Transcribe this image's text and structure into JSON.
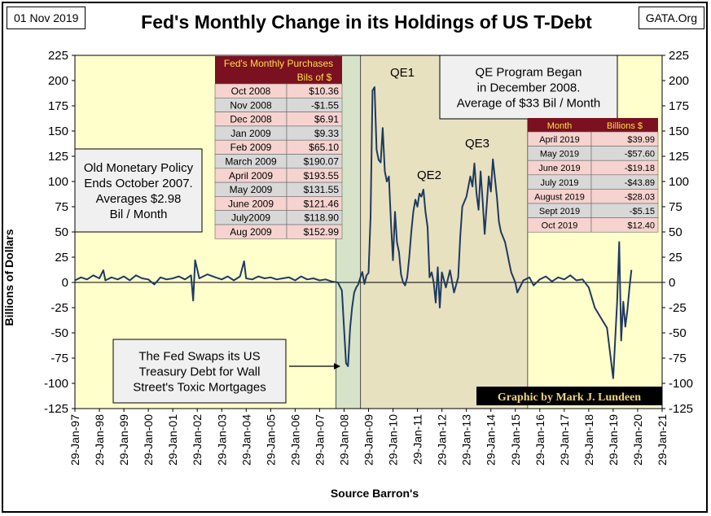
{
  "header": {
    "date": "01 Nov 2019",
    "source_site": "GATA.Org",
    "title": "Fed's Monthly Change in its Holdings of US T-Debt"
  },
  "footer": {
    "source": "Source Barron's"
  },
  "credit": "Graphic by Mark J. Lundeen",
  "colors": {
    "plot_background": "#FFFFCC",
    "qe_shading": "#E8E1C0",
    "swap_shading": "#D6E3C8",
    "series_line": "#1F3A5F",
    "table_header_bg": "#7A1020",
    "table_header_text": "#FFE040",
    "row_pink": "#F6D3CF",
    "row_gray": "#D8D8D8",
    "credit_bg": "#000000",
    "credit_text": "#F2D27A"
  },
  "annotations": {
    "qe1": "QE1",
    "qe2": "QE2",
    "qe3": "QE3",
    "qe_program": [
      "QE Program Began",
      "in December 2008.",
      "Average of $33 Bil / Month"
    ],
    "old_policy": [
      "Old Monetary Policy",
      "Ends October 2007.",
      "Averages $2.98",
      "Bil / Month"
    ],
    "swap": [
      "The Fed Swaps its US",
      "Treasury Debt for Wall",
      "Street's Toxic Mortgages"
    ]
  },
  "table_purchases": {
    "title": "Fed's Monthly Purchases",
    "value_header": "Bils of $",
    "rows": [
      [
        "Oct 2008",
        "$10.36"
      ],
      [
        "Nov 2008",
        "-$1.55"
      ],
      [
        "Dec 2008",
        "$6.91"
      ],
      [
        "Jan 2009",
        "$9.33"
      ],
      [
        "Feb 2009",
        "$65.10"
      ],
      [
        "March 2009",
        "$190.07"
      ],
      [
        "April 2009",
        "$193.55"
      ],
      [
        "May 2009",
        "$131.55"
      ],
      [
        "June 2009",
        "$121.46"
      ],
      [
        "July2009",
        "$118.90"
      ],
      [
        "Aug 2009",
        "$152.99"
      ]
    ]
  },
  "table_2019": {
    "headers": [
      "Month",
      "Billions $"
    ],
    "rows": [
      [
        "April 2019",
        "$39.99"
      ],
      [
        "May 2019",
        "-$57.60"
      ],
      [
        "June 2019",
        "-$19.18"
      ],
      [
        "July 2019",
        "-$43.89"
      ],
      [
        "August 2019",
        "-$28.03"
      ],
      [
        "Sept 2019",
        "-$5.15"
      ],
      [
        "Oct 2019",
        "$12.40"
      ]
    ]
  },
  "chart_data": {
    "type": "line",
    "title": "Fed's Monthly Change in its Holdings of US T-Debt",
    "ylabel": "Billions  of Dollars",
    "xlabel": "Source Barron's",
    "ylim": [
      -125,
      225
    ],
    "yticks": [
      225,
      200,
      175,
      150,
      125,
      100,
      75,
      50,
      25,
      0,
      -25,
      -50,
      -75,
      -100,
      -125
    ],
    "xlim": [
      "1997-01-29",
      "2021-01-29"
    ],
    "xticks": [
      "29-Jan-97",
      "29-Jan-98",
      "29-Jan-99",
      "29-Jan-00",
      "29-Jan-01",
      "29-Jan-02",
      "29-Jan-03",
      "29-Jan-04",
      "29-Jan-05",
      "29-Jan-06",
      "29-Jan-07",
      "29-Jan-08",
      "29-Jan-09",
      "29-Jan-10",
      "29-Jan-11",
      "29-Jan-12",
      "29-Jan-13",
      "29-Jan-14",
      "29-Jan-15",
      "29-Jan-16",
      "29-Jan-17",
      "29-Jan-18",
      "29-Jan-19",
      "29-Jan-20",
      "29-Jan-21"
    ],
    "grid": false,
    "shaded_regions": [
      {
        "label": "swap",
        "from": "2007-10-01",
        "to": "2008-10-01"
      },
      {
        "label": "QE",
        "from": "2008-10-01",
        "to": "2015-08-01"
      }
    ],
    "series": [
      {
        "points": [
          [
            "1997-01-29",
            2
          ],
          [
            "1997-04-29",
            5
          ],
          [
            "1997-07-29",
            3
          ],
          [
            "1997-10-29",
            7
          ],
          [
            "1998-01-29",
            4
          ],
          [
            "1998-03-29",
            12
          ],
          [
            "1998-04-29",
            2
          ],
          [
            "1998-07-29",
            5
          ],
          [
            "1998-10-29",
            3
          ],
          [
            "1999-01-29",
            6
          ],
          [
            "1999-04-29",
            2
          ],
          [
            "1999-07-29",
            7
          ],
          [
            "1999-10-29",
            4
          ],
          [
            "2000-01-29",
            3
          ],
          [
            "2000-04-29",
            -2
          ],
          [
            "2000-07-29",
            5
          ],
          [
            "2000-10-29",
            3
          ],
          [
            "2001-01-29",
            4
          ],
          [
            "2001-04-29",
            6
          ],
          [
            "2001-07-29",
            3
          ],
          [
            "2001-10-29",
            7
          ],
          [
            "2001-11-29",
            -18
          ],
          [
            "2001-12-29",
            22
          ],
          [
            "2002-02-28",
            4
          ],
          [
            "2002-06-29",
            8
          ],
          [
            "2002-10-29",
            5
          ],
          [
            "2003-01-29",
            3
          ],
          [
            "2003-04-29",
            6
          ],
          [
            "2003-07-29",
            2
          ],
          [
            "2003-10-29",
            6
          ],
          [
            "2003-12-29",
            21
          ],
          [
            "2004-01-29",
            4
          ],
          [
            "2004-04-29",
            3
          ],
          [
            "2004-07-29",
            6
          ],
          [
            "2004-10-29",
            4
          ],
          [
            "2005-01-29",
            5
          ],
          [
            "2005-04-29",
            3
          ],
          [
            "2005-07-29",
            4
          ],
          [
            "2005-10-29",
            5
          ],
          [
            "2006-01-29",
            2
          ],
          [
            "2006-04-29",
            6
          ],
          [
            "2006-07-29",
            3
          ],
          [
            "2006-10-29",
            4
          ],
          [
            "2007-01-29",
            2
          ],
          [
            "2007-04-29",
            3
          ],
          [
            "2007-07-29",
            1
          ],
          [
            "2007-10-29",
            0
          ],
          [
            "2007-12-29",
            -8
          ],
          [
            "2008-01-29",
            -45
          ],
          [
            "2008-02-29",
            -80
          ],
          [
            "2008-03-29",
            -83
          ],
          [
            "2008-04-29",
            -45
          ],
          [
            "2008-05-29",
            -25
          ],
          [
            "2008-06-29",
            -10
          ],
          [
            "2008-07-29",
            -5
          ],
          [
            "2008-08-29",
            -2
          ],
          [
            "2008-09-29",
            5
          ],
          [
            "2008-10-29",
            10.36
          ],
          [
            "2008-11-29",
            -1.55
          ],
          [
            "2008-12-29",
            6.91
          ],
          [
            "2009-01-29",
            9.33
          ],
          [
            "2009-02-28",
            65.1
          ],
          [
            "2009-03-29",
            190.07
          ],
          [
            "2009-04-29",
            193.55
          ],
          [
            "2009-05-29",
            131.55
          ],
          [
            "2009-06-29",
            121.46
          ],
          [
            "2009-07-29",
            118.9
          ],
          [
            "2009-08-29",
            152.99
          ],
          [
            "2009-09-29",
            110
          ],
          [
            "2009-10-29",
            100
          ],
          [
            "2009-11-29",
            105
          ],
          [
            "2009-12-29",
            60
          ],
          [
            "2010-01-29",
            22
          ],
          [
            "2010-02-28",
            70
          ],
          [
            "2010-03-29",
            40
          ],
          [
            "2010-04-29",
            30
          ],
          [
            "2010-05-29",
            8
          ],
          [
            "2010-06-29",
            0
          ],
          [
            "2010-07-29",
            -3
          ],
          [
            "2010-08-29",
            5
          ],
          [
            "2010-09-29",
            25
          ],
          [
            "2010-10-29",
            50
          ],
          [
            "2010-11-29",
            70
          ],
          [
            "2010-12-29",
            82
          ],
          [
            "2011-01-29",
            75
          ],
          [
            "2011-02-28",
            88
          ],
          [
            "2011-03-29",
            85
          ],
          [
            "2011-04-29",
            92
          ],
          [
            "2011-05-29",
            70
          ],
          [
            "2011-06-29",
            55
          ],
          [
            "2011-07-29",
            5
          ],
          [
            "2011-08-29",
            10
          ],
          [
            "2011-09-29",
            0
          ],
          [
            "2011-10-29",
            -20
          ],
          [
            "2011-11-29",
            15
          ],
          [
            "2011-12-29",
            -25
          ],
          [
            "2012-01-29",
            10
          ],
          [
            "2012-03-29",
            -5
          ],
          [
            "2012-05-29",
            12
          ],
          [
            "2012-07-29",
            -10
          ],
          [
            "2012-09-29",
            5
          ],
          [
            "2012-10-29",
            45
          ],
          [
            "2012-11-29",
            75
          ],
          [
            "2013-01-29",
            85
          ],
          [
            "2013-03-29",
            105
          ],
          [
            "2013-04-29",
            95
          ],
          [
            "2013-05-29",
            118
          ],
          [
            "2013-06-29",
            88
          ],
          [
            "2013-07-29",
            72
          ],
          [
            "2013-08-29",
            110
          ],
          [
            "2013-09-29",
            80
          ],
          [
            "2013-10-29",
            48
          ],
          [
            "2013-12-29",
            105
          ],
          [
            "2014-01-29",
            90
          ],
          [
            "2014-02-28",
            122
          ],
          [
            "2014-04-29",
            85
          ],
          [
            "2014-05-29",
            60
          ],
          [
            "2014-06-29",
            50
          ],
          [
            "2014-08-29",
            40
          ],
          [
            "2014-09-29",
            30
          ],
          [
            "2014-10-29",
            20
          ],
          [
            "2014-11-29",
            10
          ],
          [
            "2014-12-29",
            5
          ],
          [
            "2015-01-29",
            0
          ],
          [
            "2015-02-28",
            -10
          ],
          [
            "2015-05-29",
            2
          ],
          [
            "2015-08-29",
            5
          ],
          [
            "2015-10-29",
            -3
          ],
          [
            "2016-01-29",
            3
          ],
          [
            "2016-04-29",
            6
          ],
          [
            "2016-07-29",
            1
          ],
          [
            "2016-10-29",
            5
          ],
          [
            "2017-01-29",
            3
          ],
          [
            "2017-04-29",
            7
          ],
          [
            "2017-07-29",
            2
          ],
          [
            "2017-10-29",
            3
          ],
          [
            "2018-01-29",
            -5
          ],
          [
            "2018-04-29",
            -25
          ],
          [
            "2018-07-29",
            -35
          ],
          [
            "2018-10-29",
            -45
          ],
          [
            "2019-01-29",
            -95
          ],
          [
            "2019-03-29",
            -20
          ],
          [
            "2019-04-29",
            39.99
          ],
          [
            "2019-05-29",
            -57.6
          ],
          [
            "2019-06-29",
            -19.18
          ],
          [
            "2019-07-29",
            -43.89
          ],
          [
            "2019-08-29",
            -28.03
          ],
          [
            "2019-09-29",
            -5.15
          ],
          [
            "2019-10-29",
            12.4
          ]
        ]
      }
    ]
  }
}
